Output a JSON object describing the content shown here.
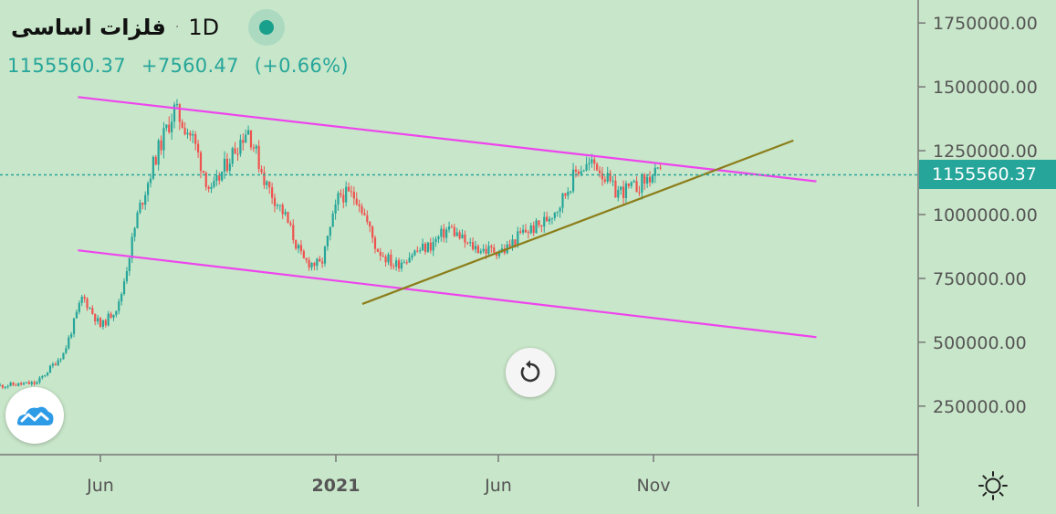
{
  "header": {
    "symbol": "فلزات اساسی",
    "separator": "·",
    "interval": "1D",
    "last_price": "1155560.37",
    "change": "+7560.47",
    "change_pct": "(+0.66%)"
  },
  "price_tag": "1155560.37",
  "icons": {
    "reset": "reset-icon",
    "logo": "tradingview-logo-icon",
    "settings": "settings-sun-icon"
  },
  "colors": {
    "background": "#c8e6c9",
    "up_candle": "#26a69a",
    "down_candle": "#ef5350",
    "channel_lines": "#ee44ee",
    "trend_line": "#8b7d1a",
    "price_line": "#26a69a"
  },
  "chart_data": {
    "type": "candlestick",
    "y_ticks": [
      "1750000.00",
      "1500000.00",
      "1250000.00",
      "1000000.00",
      "750000.00",
      "500000.00",
      "250000.00"
    ],
    "x_ticks": [
      {
        "label": "Jun",
        "bold": false
      },
      {
        "label": "2021",
        "bold": true
      },
      {
        "label": "Jun",
        "bold": false
      },
      {
        "label": "Nov",
        "bold": false
      }
    ],
    "ylim": [
      60000,
      1840000
    ],
    "price_line": 1155560.37,
    "series": [
      {
        "t": 0,
        "v": 330000
      },
      {
        "t": 0.04,
        "v": 340000
      },
      {
        "t": 0.07,
        "v": 460000
      },
      {
        "t": 0.09,
        "v": 680000
      },
      {
        "t": 0.11,
        "v": 560000
      },
      {
        "t": 0.13,
        "v": 650000
      },
      {
        "t": 0.15,
        "v": 1000000
      },
      {
        "t": 0.17,
        "v": 1230000
      },
      {
        "t": 0.19,
        "v": 1410000
      },
      {
        "t": 0.21,
        "v": 1300000
      },
      {
        "t": 0.23,
        "v": 1080000
      },
      {
        "t": 0.25,
        "v": 1220000
      },
      {
        "t": 0.27,
        "v": 1340000
      },
      {
        "t": 0.29,
        "v": 1120000
      },
      {
        "t": 0.31,
        "v": 1000000
      },
      {
        "t": 0.33,
        "v": 820000
      },
      {
        "t": 0.35,
        "v": 800000
      },
      {
        "t": 0.37,
        "v": 1080000
      },
      {
        "t": 0.39,
        "v": 1070000
      },
      {
        "t": 0.41,
        "v": 870000
      },
      {
        "t": 0.43,
        "v": 800000
      },
      {
        "t": 0.45,
        "v": 850000
      },
      {
        "t": 0.47,
        "v": 880000
      },
      {
        "t": 0.49,
        "v": 950000
      },
      {
        "t": 0.51,
        "v": 880000
      },
      {
        "t": 0.53,
        "v": 860000
      },
      {
        "t": 0.55,
        "v": 860000
      },
      {
        "t": 0.57,
        "v": 930000
      },
      {
        "t": 0.59,
        "v": 960000
      },
      {
        "t": 0.61,
        "v": 1040000
      },
      {
        "t": 0.63,
        "v": 1180000
      },
      {
        "t": 0.65,
        "v": 1200000
      },
      {
        "t": 0.67,
        "v": 1090000
      },
      {
        "t": 0.69,
        "v": 1100000
      },
      {
        "t": 0.71,
        "v": 1150000
      },
      {
        "t": 0.72,
        "v": 1155560
      }
    ],
    "drawings": [
      {
        "name": "upper-channel-line",
        "from": {
          "t": 0.085,
          "v": 1460000
        },
        "to": {
          "t": 0.89,
          "v": 1130000
        }
      },
      {
        "name": "lower-channel-line",
        "from": {
          "t": 0.085,
          "v": 860000
        },
        "to": {
          "t": 0.89,
          "v": 520000
        }
      },
      {
        "name": "rising-trend-line",
        "from": {
          "t": 0.395,
          "v": 650000
        },
        "to": {
          "t": 0.865,
          "v": 1290000
        }
      }
    ]
  }
}
